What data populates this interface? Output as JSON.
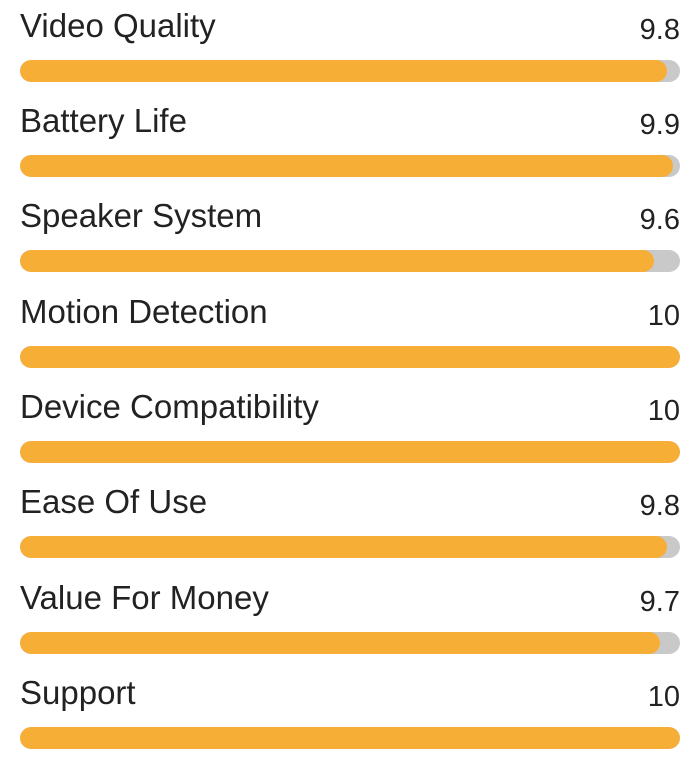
{
  "colors": {
    "bar_fill": "#f7ae36",
    "bar_track": "#c9c9c9",
    "text": "#222222"
  },
  "ratings": {
    "max": 10,
    "items": [
      {
        "label": "Video Quality",
        "score": "9.8",
        "value": 9.8
      },
      {
        "label": "Battery Life",
        "score": "9.9",
        "value": 9.9
      },
      {
        "label": "Speaker System",
        "score": "9.6",
        "value": 9.6
      },
      {
        "label": "Motion Detection",
        "score": "10",
        "value": 10
      },
      {
        "label": "Device Compatibility",
        "score": "10",
        "value": 10
      },
      {
        "label": "Ease Of Use",
        "score": "9.8",
        "value": 9.8
      },
      {
        "label": "Value For Money",
        "score": "9.7",
        "value": 9.7
      },
      {
        "label": "Support",
        "score": "10",
        "value": 10
      }
    ]
  }
}
